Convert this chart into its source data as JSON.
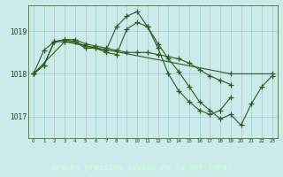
{
  "background_color": "#cceaea",
  "plot_bg_color": "#cceaea",
  "grid_color": "#99cccc",
  "line_color": "#2d5a1b",
  "xlabel": "Graphe pression niveau de la mer (hPa)",
  "xlabel_bg": "#2d5a1b",
  "xlabel_fg": "#ccffcc",
  "ylim": [
    1016.5,
    1019.6
  ],
  "yticks": [
    1017,
    1018,
    1019
  ],
  "xlim": [
    -0.5,
    23.5
  ],
  "xticks": [
    0,
    1,
    2,
    3,
    4,
    5,
    6,
    7,
    8,
    9,
    10,
    11,
    12,
    13,
    14,
    15,
    16,
    17,
    18,
    19,
    20,
    21,
    22,
    23
  ],
  "series": [
    {
      "x": [
        0,
        1,
        2,
        3,
        4,
        5,
        6,
        7,
        8,
        9,
        10,
        11,
        12,
        13,
        14,
        15,
        16,
        17,
        18,
        19,
        20,
        21,
        22,
        23
      ],
      "y": [
        1018.0,
        1018.2,
        1018.75,
        1018.8,
        1018.75,
        1018.65,
        1018.6,
        1018.5,
        1018.45,
        1019.05,
        1019.2,
        1019.1,
        1018.7,
        1018.35,
        1018.05,
        1017.7,
        1017.35,
        1017.15,
        1016.95,
        1017.05,
        1016.8,
        1017.3,
        1017.7,
        1017.95
      ]
    },
    {
      "x": [
        0,
        1,
        2,
        3,
        4,
        5,
        6,
        7,
        8,
        9,
        10,
        11,
        12,
        13,
        14,
        15,
        16,
        17,
        18,
        19
      ],
      "y": [
        1018.0,
        1018.55,
        1018.75,
        1018.75,
        1018.75,
        1018.6,
        1018.6,
        1018.55,
        1019.1,
        1019.35,
        1019.45,
        1019.1,
        1018.6,
        1018.0,
        1017.6,
        1017.35,
        1017.15,
        1017.05,
        1017.15,
        1017.45
      ]
    },
    {
      "x": [
        0,
        1,
        2,
        3,
        4,
        5,
        6,
        7,
        8,
        9,
        10,
        11,
        12,
        13,
        14,
        15,
        16,
        17,
        18,
        19
      ],
      "y": [
        1018.0,
        1018.2,
        1018.75,
        1018.8,
        1018.8,
        1018.7,
        1018.65,
        1018.6,
        1018.55,
        1018.5,
        1018.5,
        1018.5,
        1018.45,
        1018.4,
        1018.35,
        1018.25,
        1018.1,
        1017.95,
        1017.85,
        1017.75
      ]
    },
    {
      "x": [
        0,
        3,
        19,
        23
      ],
      "y": [
        1018.0,
        1018.75,
        1018.0,
        1018.0
      ]
    }
  ]
}
